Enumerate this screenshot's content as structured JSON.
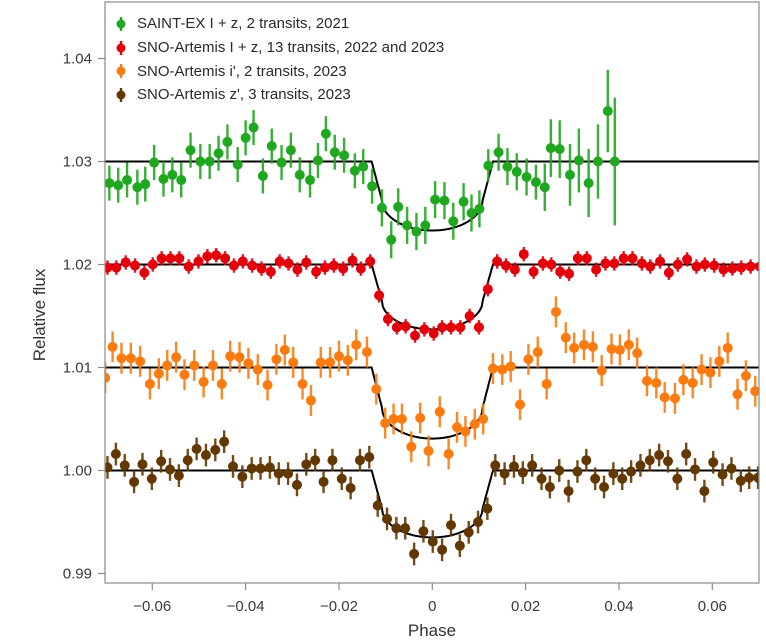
{
  "chart_data": {
    "type": "scatter",
    "xlabel": "Phase",
    "ylabel": "Relative flux",
    "xlim": [
      -0.07,
      0.07
    ],
    "ylim": [
      0.989,
      1.0454
    ],
    "xticks": [
      -0.06,
      -0.04,
      -0.02,
      0,
      0.02,
      0.04,
      0.06
    ],
    "xtick_labels": [
      "−0.06",
      "−0.04",
      "−0.02",
      "0",
      "0.02",
      "0.04",
      "0.06"
    ],
    "yticks": [
      0.99,
      1.0,
      1.01,
      1.02,
      1.03,
      1.04
    ],
    "ytick_labels": [
      "0.99",
      "1.00",
      "1.01",
      "1.02",
      "1.03",
      "1.04"
    ],
    "grid": false,
    "legend_position": "top-left",
    "model_color": "#000000",
    "series": [
      {
        "name": "SAINT-EX I + z, 2 transits, 2021",
        "color": "#1fa71f",
        "baseline": 1.03,
        "model_depth": 0.0067,
        "x": [
          -0.0692,
          -0.0673,
          -0.0654,
          -0.0632,
          -0.0615,
          -0.0596,
          -0.0576,
          -0.0557,
          -0.0538,
          -0.0518,
          -0.0497,
          -0.0477,
          -0.0458,
          -0.0439,
          -0.0417,
          -0.04,
          -0.0383,
          -0.0363,
          -0.0344,
          -0.0323,
          -0.0303,
          -0.0284,
          -0.0262,
          -0.0245,
          -0.0228,
          -0.0209,
          -0.0189,
          -0.0166,
          -0.0148,
          -0.0129,
          -0.0108,
          -0.0088,
          -0.0073,
          -0.0054,
          -0.0034,
          -0.0015,
          0.0006,
          0.0026,
          0.0045,
          0.0067,
          0.0084,
          0.0101,
          0.012,
          0.0142,
          0.0161,
          0.0181,
          0.0202,
          0.0222,
          0.0241,
          0.0254,
          0.0273,
          0.0295,
          0.0314,
          0.0335,
          0.0355,
          0.0376,
          0.0391
        ],
        "y": [
          1.0279,
          1.0277,
          1.0282,
          1.0275,
          1.0278,
          1.0299,
          1.0283,
          1.0287,
          1.0282,
          1.0311,
          1.03,
          1.03,
          1.0308,
          1.0319,
          1.0297,
          1.0323,
          1.0333,
          1.0286,
          1.0315,
          1.0299,
          1.0311,
          1.0287,
          1.0282,
          1.0301,
          1.0327,
          1.0309,
          1.0306,
          1.0291,
          1.0295,
          1.0276,
          1.0255,
          1.0224,
          1.0256,
          1.0238,
          1.0232,
          1.0238,
          1.0263,
          1.0262,
          1.0242,
          1.0261,
          1.025,
          1.0254,
          1.0296,
          1.0309,
          1.0295,
          1.029,
          1.0285,
          1.028,
          1.0275,
          1.0313,
          1.0312,
          1.0287,
          1.0301,
          1.0279,
          1.03,
          1.0349,
          1.03
        ],
        "err": [
          0.0017,
          0.0017,
          0.0017,
          0.0017,
          0.0017,
          0.0017,
          0.0017,
          0.0017,
          0.0017,
          0.0017,
          0.0017,
          0.0017,
          0.0017,
          0.0017,
          0.0017,
          0.0017,
          0.0017,
          0.0017,
          0.0017,
          0.0017,
          0.0017,
          0.0017,
          0.0017,
          0.0017,
          0.0017,
          0.0017,
          0.0017,
          0.0017,
          0.0017,
          0.0017,
          0.0018,
          0.0018,
          0.0018,
          0.0018,
          0.0018,
          0.0018,
          0.0018,
          0.0018,
          0.0018,
          0.0018,
          0.0018,
          0.0018,
          0.0016,
          0.0018,
          0.0018,
          0.0018,
          0.0018,
          0.0017,
          0.0023,
          0.0028,
          0.0028,
          0.003,
          0.0031,
          0.0033,
          0.0036,
          0.004,
          0.0062
        ]
      },
      {
        "name": "SNO-Artemis I + z, 13 transits, 2022 and 2023",
        "color": "#e3000b",
        "baseline": 1.02,
        "model_depth": 0.0063,
        "x": [
          -0.0696,
          -0.0677,
          -0.0657,
          -0.0637,
          -0.0617,
          -0.0599,
          -0.058,
          -0.0561,
          -0.0542,
          -0.0522,
          -0.0501,
          -0.0482,
          -0.0463,
          -0.0444,
          -0.0425,
          -0.0406,
          -0.0386,
          -0.0366,
          -0.0346,
          -0.0327,
          -0.0308,
          -0.0289,
          -0.027,
          -0.0249,
          -0.023,
          -0.0211,
          -0.0191,
          -0.0171,
          -0.0153,
          -0.0133,
          -0.0114,
          -0.0095,
          -0.0076,
          -0.0057,
          -0.0037,
          -0.0017,
          0.0003,
          0.0021,
          0.004,
          0.006,
          0.008,
          0.01,
          0.0119,
          0.0139,
          0.0158,
          0.0177,
          0.0196,
          0.0217,
          0.0237,
          0.0255,
          0.0274,
          0.0293,
          0.0312,
          0.0331,
          0.0351,
          0.0371,
          0.039,
          0.041,
          0.0429,
          0.0449,
          0.0467,
          0.0488,
          0.0507,
          0.0526,
          0.0546,
          0.0566,
          0.0584,
          0.0604,
          0.0624,
          0.0643,
          0.0662,
          0.0682,
          0.0702
        ],
        "y": [
          1.0197,
          1.0197,
          1.0202,
          1.0199,
          1.0192,
          1.02,
          1.0206,
          1.0206,
          1.0206,
          1.0198,
          1.0203,
          1.0208,
          1.0209,
          1.0206,
          1.0199,
          1.0203,
          1.0199,
          1.0196,
          1.0193,
          1.0203,
          1.0201,
          1.0195,
          1.0202,
          1.0193,
          1.0197,
          1.0199,
          1.0196,
          1.0204,
          1.0196,
          1.0203,
          1.017,
          1.0147,
          1.0139,
          1.014,
          1.0131,
          1.0137,
          1.0133,
          1.0139,
          1.0139,
          1.0139,
          1.015,
          1.0139,
          1.0176,
          1.0203,
          1.0199,
          1.0195,
          1.021,
          1.0193,
          1.0201,
          1.02,
          1.0193,
          1.0191,
          1.0206,
          1.0206,
          1.0195,
          1.0201,
          1.0201,
          1.0206,
          1.0206,
          1.0201,
          1.0198,
          1.0203,
          1.0192,
          1.02,
          1.0205,
          1.0198,
          1.02,
          1.0199,
          1.0195,
          1.0196,
          1.0197,
          1.0198,
          1.0198
        ],
        "err": 0.0007
      },
      {
        "name": "SNO-Artemis i', 2 transits, 2023",
        "color": "#fb7b10",
        "baseline": 1.01,
        "model_depth": 0.0069,
        "x": [
          -0.0701,
          -0.0685,
          -0.0666,
          -0.0646,
          -0.0626,
          -0.0605,
          -0.0586,
          -0.0568,
          -0.0549,
          -0.0531,
          -0.051,
          -0.049,
          -0.047,
          -0.0451,
          -0.0433,
          -0.0413,
          -0.0394,
          -0.0374,
          -0.0353,
          -0.0334,
          -0.0316,
          -0.0298,
          -0.0278,
          -0.026,
          -0.0239,
          -0.0219,
          -0.02,
          -0.0181,
          -0.0163,
          -0.014,
          -0.012,
          -0.0101,
          -0.0083,
          -0.0065,
          -0.0045,
          -0.0026,
          -0.0008,
          0.0016,
          0.0035,
          0.0053,
          0.0071,
          0.0091,
          0.0109,
          0.013,
          0.015,
          0.0168,
          0.0188,
          0.0206,
          0.0226,
          0.0245,
          0.0265,
          0.0286,
          0.0304,
          0.0325,
          0.0344,
          0.0363,
          0.0384,
          0.0402,
          0.0421,
          0.0439,
          0.046,
          0.048,
          0.0498,
          0.052,
          0.0538,
          0.0558,
          0.0577,
          0.0596,
          0.0615,
          0.0633,
          0.0654,
          0.0672,
          0.0692
        ],
        "y": [
          1.009,
          1.012,
          1.0109,
          1.0109,
          1.0106,
          1.0084,
          1.0094,
          1.0102,
          1.011,
          1.0093,
          1.0102,
          1.0086,
          1.0102,
          1.0084,
          1.0111,
          1.011,
          1.0104,
          1.0098,
          1.0083,
          1.0108,
          1.0117,
          1.0105,
          1.0084,
          1.0068,
          1.0105,
          1.0105,
          1.0111,
          1.0107,
          1.0122,
          1.0115,
          1.0079,
          1.0046,
          1.005,
          1.005,
          1.0023,
          1.0051,
          1.0019,
          1.0057,
          1.0016,
          1.0042,
          1.0038,
          1.0045,
          1.005,
          1.0099,
          1.0098,
          1.0101,
          1.0064,
          1.0108,
          1.0115,
          1.0084,
          1.0154,
          1.0129,
          1.0119,
          1.0122,
          1.012,
          1.0097,
          1.0118,
          1.0117,
          1.0122,
          1.0114,
          1.0087,
          1.0085,
          1.0071,
          1.007,
          1.0088,
          1.0085,
          1.0098,
          1.0095,
          1.0106,
          1.0119,
          1.0074,
          1.0092,
          1.0077
        ],
        "err": 0.0015
      },
      {
        "name": "SNO-Artemis z', 3 transits, 2023",
        "color": "#633700",
        "baseline": 1.0,
        "model_depth": 0.0065,
        "x": [
          -0.0696,
          -0.0678,
          -0.0659,
          -0.0639,
          -0.0621,
          -0.0601,
          -0.0581,
          -0.0562,
          -0.0543,
          -0.0524,
          -0.0505,
          -0.0485,
          -0.0465,
          -0.0446,
          -0.0427,
          -0.0407,
          -0.0387,
          -0.0368,
          -0.0348,
          -0.0329,
          -0.0309,
          -0.029,
          -0.027,
          -0.0251,
          -0.0233,
          -0.0214,
          -0.0194,
          -0.0175,
          -0.0155,
          -0.0135,
          -0.0117,
          -0.0097,
          -0.0077,
          -0.0058,
          -0.0039,
          -0.0019,
          0.0001,
          0.0021,
          0.004,
          0.0059,
          0.0078,
          0.0098,
          0.0118,
          0.0135,
          0.0155,
          0.0175,
          0.0194,
          0.0214,
          0.0234,
          0.0252,
          0.0272,
          0.0292,
          0.0311,
          0.033,
          0.0349,
          0.0368,
          0.0388,
          0.0407,
          0.0426,
          0.0446,
          0.0466,
          0.0486,
          0.0505,
          0.0525,
          0.0544,
          0.0563,
          0.0583,
          0.0602,
          0.0622,
          0.0641,
          0.0661,
          0.0679,
          0.0698
        ],
        "y": [
          1.0003,
          1.0016,
          1.0005,
          0.9989,
          1.0006,
          0.9992,
          1.0009,
          1.0001,
          0.9995,
          1.001,
          1.0021,
          1.0015,
          1.002,
          1.0028,
          1.0004,
          0.9994,
          1.0002,
          1.0002,
          1.0003,
          0.9997,
          0.9997,
          0.9986,
          1.0006,
          1.001,
          0.9989,
          1.001,
          0.9992,
          0.9983,
          1.001,
          1.0013,
          0.9966,
          0.9953,
          0.9944,
          0.9944,
          0.9919,
          0.9941,
          0.9931,
          0.9923,
          0.9947,
          0.9927,
          0.994,
          0.995,
          0.9963,
          1.0005,
          0.9997,
          1.0004,
          0.9998,
          1.0005,
          0.9992,
          0.9984,
          1.0,
          0.998,
          0.9999,
          1.001,
          0.9992,
          0.9984,
          0.9997,
          0.9992,
          0.9999,
          1.0005,
          1.001,
          1.0015,
          1.0009,
          0.9992,
          1.0016,
          1.0001,
          0.998,
          1.0008,
          0.9996,
          1.0002,
          0.999,
          0.9993,
          0.9993
        ],
        "err": 0.0011
      }
    ]
  }
}
